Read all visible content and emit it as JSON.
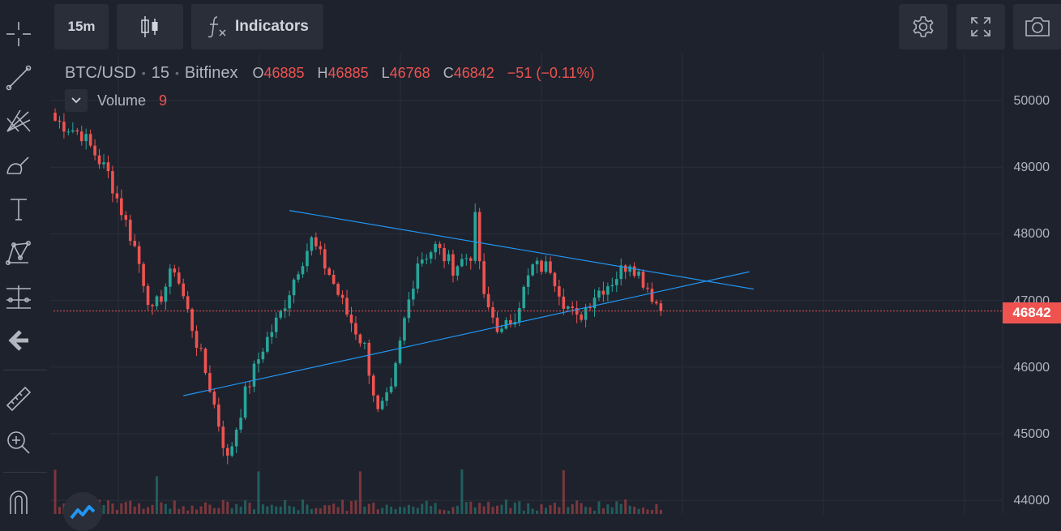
{
  "toolbar": {
    "interval_label": "15m",
    "indicators_label": "Indicators"
  },
  "legend": {
    "symbol": "BTC/USD",
    "interval": "15",
    "exchange": "Bitfinex",
    "open_key": "O",
    "open": "46885",
    "high_key": "H",
    "high": "46885",
    "low_key": "L",
    "low": "46768",
    "close_key": "C",
    "close": "46842",
    "change": "−51 (−0.11%)"
  },
  "volume": {
    "label": "Volume",
    "value": "9"
  },
  "price_axis": [
    "50000",
    "49000",
    "48000",
    "47000",
    "46000",
    "45000",
    "44000"
  ],
  "last_price": "46842",
  "colors": {
    "up": "#26a69a",
    "down": "#ef5350",
    "trendline": "#2196f3",
    "background": "#1e222d",
    "panel": "#2a2e39"
  },
  "chart_data": {
    "type": "candlestick",
    "symbol": "BTC/USD",
    "interval": "15",
    "ylim": [
      43900,
      50550
    ],
    "last_price": 46842,
    "trendlines": [
      {
        "name": "upper",
        "from": {
          "bar": 53,
          "price": 48350
        },
        "to": {
          "bar": 158,
          "price": 47170
        }
      },
      {
        "name": "lower",
        "from": {
          "bar": 29,
          "price": 45570
        },
        "to": {
          "bar": 157,
          "price": 47430
        }
      }
    ],
    "key_closes": [
      [
        0,
        49700
      ],
      [
        6,
        49500
      ],
      [
        12,
        48900
      ],
      [
        18,
        47800
      ],
      [
        22,
        46800
      ],
      [
        27,
        47500
      ],
      [
        31,
        46600
      ],
      [
        35,
        45700
      ],
      [
        39,
        44600
      ],
      [
        43,
        45600
      ],
      [
        47,
        46300
      ],
      [
        51,
        46800
      ],
      [
        55,
        47500
      ],
      [
        58,
        47900
      ],
      [
        62,
        47400
      ],
      [
        66,
        46800
      ],
      [
        70,
        46300
      ],
      [
        73,
        45300
      ],
      [
        76,
        45600
      ],
      [
        79,
        46700
      ],
      [
        82,
        47600
      ],
      [
        86,
        47800
      ],
      [
        90,
        47500
      ],
      [
        94,
        47700
      ],
      [
        95,
        48200
      ],
      [
        97,
        47000
      ],
      [
        101,
        46500
      ],
      [
        104,
        46800
      ],
      [
        108,
        47500
      ],
      [
        112,
        47500
      ],
      [
        115,
        47000
      ],
      [
        118,
        46700
      ],
      [
        122,
        47100
      ],
      [
        126,
        47300
      ],
      [
        130,
        47600
      ],
      [
        134,
        47200
      ],
      [
        137,
        46842
      ]
    ]
  }
}
